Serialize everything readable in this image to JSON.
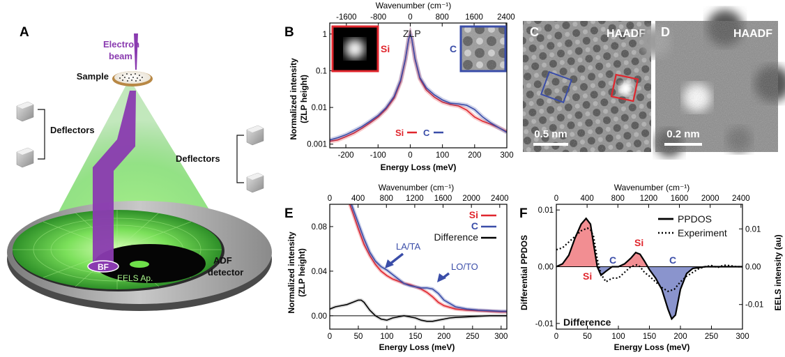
{
  "panels": {
    "A": {
      "label": "A",
      "beam": [
        "Electron",
        "beam"
      ],
      "sample": "Sample",
      "deflectors_left": "Deflectors",
      "deflectors_right": "Deflectors",
      "bf": "BF",
      "eels": "EELS Ap.",
      "adf": [
        "ADF",
        "detector"
      ]
    },
    "B": {
      "label": "B",
      "top_label": "Wavenumber (cm⁻¹)",
      "ylabel": [
        "Normalized intensity",
        "(ZLP height)"
      ],
      "xlabel": "Energy Loss (meV)",
      "zlp": "ZLP",
      "si": "Si",
      "c": "C"
    },
    "C": {
      "label": "C",
      "title": "HAADF",
      "scale": "0.5 nm"
    },
    "D": {
      "label": "D",
      "title": "HAADF",
      "scale": "0.2 nm"
    },
    "E": {
      "label": "E",
      "top_label": "Wavenumber (cm⁻¹)",
      "ylabel": [
        "Normalized intensity",
        "(ZLP height)"
      ],
      "xlabel": "Energy Loss (meV)",
      "legend": [
        "Si",
        "C",
        "Difference"
      ],
      "la_ta": "LA/TA",
      "lo_to": "LO/TO"
    },
    "F": {
      "label": "F",
      "top_label": "Wavenumber (cm⁻¹)",
      "ylabel_left": "Differential PPDOS",
      "ylabel_right": "EELS intensity (au)",
      "xlabel": "Energy Loss (meV)",
      "legend": [
        "PPDOS",
        "Experiment"
      ],
      "difference": "Difference",
      "si": "Si",
      "c": "C"
    }
  },
  "colors": {
    "si": "#e0262d",
    "c": "#3a4da8",
    "purple": "#8a3bb0",
    "green": "#5fd34a"
  },
  "chart_data": [
    {
      "id": "B",
      "type": "line",
      "xlim": [
        -250,
        300
      ],
      "ylim_log10": [
        -3.1,
        0.3
      ],
      "xticks": [
        -200,
        -100,
        0,
        100,
        200,
        300
      ],
      "xticklabels": [
        "-200",
        "-100",
        "0",
        "100",
        "200",
        "300"
      ],
      "yticks": [
        1,
        0.1,
        0.01,
        0.001
      ],
      "yticklabels": [
        "1",
        "0.1",
        "0.01",
        "0.001"
      ],
      "top_ticks": [
        -1600,
        -800,
        0,
        800,
        1600,
        2400
      ],
      "top_ticklabels": [
        "-1600",
        "-800",
        "0",
        "800",
        "1600",
        "2400"
      ],
      "series": [
        {
          "name": "Si",
          "color": "#e0262d",
          "x": [
            -250,
            -225,
            -200,
            -175,
            -150,
            -125,
            -100,
            -75,
            -50,
            -30,
            -15,
            -5,
            0,
            5,
            15,
            30,
            50,
            75,
            100,
            125,
            150,
            175,
            200,
            225,
            250,
            275,
            300
          ],
          "y": [
            0.0012,
            0.0013,
            0.0016,
            0.002,
            0.0027,
            0.0038,
            0.0055,
            0.009,
            0.018,
            0.05,
            0.2,
            0.7,
            1.0,
            0.7,
            0.2,
            0.06,
            0.03,
            0.019,
            0.014,
            0.012,
            0.011,
            0.0085,
            0.0055,
            0.0042,
            0.0035,
            0.0028,
            0.0022
          ]
        },
        {
          "name": "C",
          "color": "#3a4da8",
          "x": [
            -250,
            -225,
            -200,
            -175,
            -150,
            -125,
            -100,
            -75,
            -50,
            -30,
            -15,
            -5,
            0,
            5,
            15,
            30,
            50,
            75,
            100,
            125,
            150,
            175,
            200,
            225,
            250,
            275,
            300
          ],
          "y": [
            0.0013,
            0.0015,
            0.0018,
            0.0023,
            0.003,
            0.0042,
            0.006,
            0.0098,
            0.02,
            0.055,
            0.21,
            0.72,
            1.0,
            0.72,
            0.21,
            0.065,
            0.034,
            0.022,
            0.016,
            0.013,
            0.0125,
            0.0115,
            0.0088,
            0.0055,
            0.0038,
            0.0028,
            0.0021
          ]
        }
      ]
    },
    {
      "id": "E",
      "type": "line",
      "xlim": [
        0,
        310
      ],
      "ylim": [
        -0.012,
        0.1
      ],
      "xticks": [
        0,
        50,
        100,
        150,
        200,
        250,
        300
      ],
      "xticklabels": [
        "0",
        "50",
        "100",
        "150",
        "200",
        "250",
        "300"
      ],
      "yticks": [
        0,
        0.04,
        0.08
      ],
      "yticklabels": [
        "0.00",
        "0.04",
        "0.08"
      ],
      "top_ticks": [
        0,
        400,
        800,
        1200,
        1600,
        2000,
        2400
      ],
      "top_ticklabels": [
        "0",
        "400",
        "800",
        "1200",
        "1600",
        "2000",
        "2400"
      ],
      "series": [
        {
          "name": "Si",
          "color": "#e0262d",
          "x": [
            35,
            40,
            50,
            60,
            70,
            80,
            90,
            100,
            110,
            120,
            130,
            140,
            150,
            160,
            170,
            180,
            190,
            200,
            220,
            240,
            260,
            280,
            300,
            310
          ],
          "y": [
            0.1,
            0.093,
            0.078,
            0.064,
            0.054,
            0.046,
            0.04,
            0.036,
            0.033,
            0.031,
            0.029,
            0.028,
            0.026,
            0.024,
            0.021,
            0.017,
            0.012,
            0.009,
            0.006,
            0.005,
            0.0045,
            0.004,
            0.0035,
            0.0035
          ]
        },
        {
          "name": "C",
          "color": "#3a4da8",
          "x": [
            38,
            40,
            50,
            60,
            70,
            80,
            90,
            100,
            110,
            120,
            130,
            140,
            150,
            160,
            170,
            180,
            190,
            200,
            220,
            240,
            260,
            280,
            300,
            310
          ],
          "y": [
            0.1,
            0.097,
            0.083,
            0.069,
            0.057,
            0.049,
            0.044,
            0.041,
            0.037,
            0.033,
            0.029,
            0.027,
            0.026,
            0.025,
            0.025,
            0.024,
            0.02,
            0.014,
            0.008,
            0.006,
            0.005,
            0.0045,
            0.004,
            0.004
          ]
        },
        {
          "name": "Difference",
          "color": "#000000",
          "x": [
            0,
            10,
            20,
            30,
            40,
            50,
            55,
            60,
            70,
            80,
            90,
            100,
            110,
            120,
            130,
            140,
            150,
            160,
            170,
            180,
            190,
            200,
            210,
            220,
            240,
            260,
            280,
            300,
            310
          ],
          "y": [
            0.006,
            0.008,
            0.009,
            0.01,
            0.012,
            0.014,
            0.014,
            0.012,
            0.005,
            0.0,
            -0.003,
            -0.004,
            -0.002,
            -0.001,
            0.0,
            -0.001,
            -0.002,
            -0.004,
            -0.005,
            -0.005,
            -0.004,
            -0.003,
            -0.002,
            -0.0015,
            -0.001,
            -0.0005,
            0.0,
            0.0,
            0.0
          ]
        }
      ]
    },
    {
      "id": "F",
      "type": "area",
      "xlim": [
        0,
        300
      ],
      "ylim": [
        -0.011,
        0.011
      ],
      "ylim_right": [
        -0.0165,
        0.0165
      ],
      "xticks": [
        0,
        50,
        100,
        150,
        200,
        250,
        300
      ],
      "xticklabels": [
        "0",
        "50",
        "100",
        "150",
        "200",
        "250",
        "300"
      ],
      "yticks": [
        -0.01,
        0.0,
        0.01
      ],
      "yticklabels": [
        "-0.01",
        "0.00",
        "0.01"
      ],
      "yticks_right": [
        -0.01,
        0.0,
        0.01
      ],
      "yticklabels_right": [
        "-0.01",
        "0.00",
        "0.01"
      ],
      "top_ticks": [
        0,
        400,
        800,
        1200,
        1600,
        2000,
        2400
      ],
      "top_ticklabels": [
        "0",
        "400",
        "800",
        "1200",
        "1600",
        "2000",
        "2400"
      ],
      "series": [
        {
          "name": "PPDOS",
          "axis": "left",
          "x": [
            0,
            10,
            20,
            30,
            40,
            48,
            55,
            60,
            66,
            72,
            80,
            90,
            100,
            110,
            120,
            128,
            135,
            142,
            150,
            160,
            170,
            180,
            186,
            192,
            200,
            210,
            220,
            240,
            260,
            280,
            300
          ],
          "y": [
            0.0,
            0.0005,
            0.002,
            0.005,
            0.0075,
            0.0085,
            0.0075,
            0.004,
            0.0,
            -0.0015,
            -0.0008,
            0.0,
            0.0,
            0.0005,
            0.0015,
            0.0025,
            0.0022,
            0.001,
            -0.0005,
            -0.002,
            -0.004,
            -0.0075,
            -0.0092,
            -0.0085,
            -0.004,
            -0.0012,
            -0.0003,
            0.0,
            0.0,
            0.0,
            0.0
          ]
        },
        {
          "name": "Experiment",
          "axis": "right",
          "x": [
            0,
            10,
            20,
            30,
            40,
            50,
            55,
            60,
            66,
            72,
            80,
            90,
            100,
            110,
            120,
            130,
            135,
            142,
            150,
            160,
            170,
            180,
            190,
            200,
            210,
            220,
            230,
            240,
            250,
            260,
            270,
            280,
            290,
            300
          ],
          "y": [
            0.0045,
            0.005,
            0.0065,
            0.008,
            0.0095,
            0.0102,
            0.0098,
            0.008,
            0.002,
            -0.002,
            -0.004,
            -0.003,
            -0.003,
            -0.0015,
            0.0,
            0.0005,
            0.0,
            -0.0015,
            -0.0025,
            -0.004,
            -0.0055,
            -0.0065,
            -0.006,
            -0.004,
            -0.0025,
            -0.0015,
            -0.0005,
            0.0,
            0.0003,
            -0.0002,
            0.0004,
            0.0003,
            0.0,
            0.0
          ]
        }
      ]
    }
  ]
}
